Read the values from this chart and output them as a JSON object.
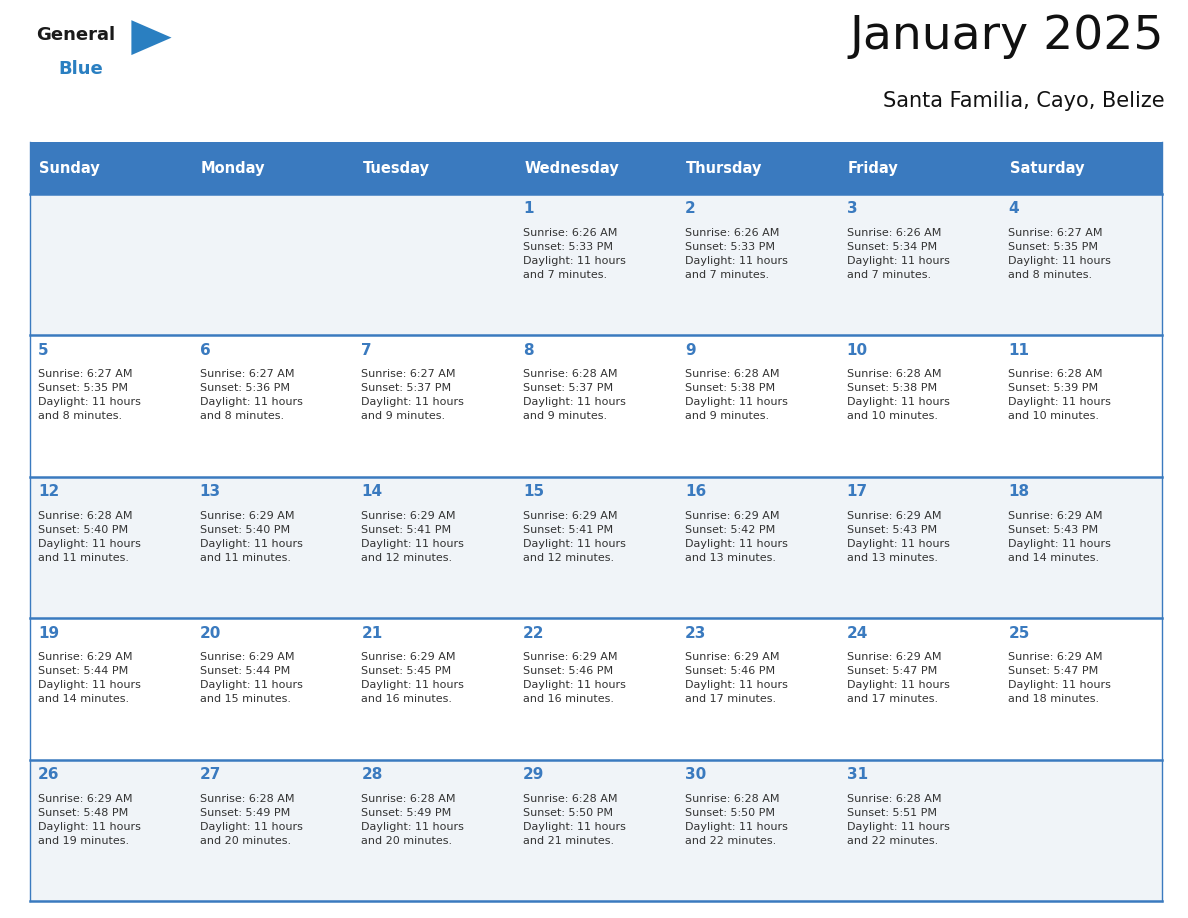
{
  "title": "January 2025",
  "subtitle": "Santa Familia, Cayo, Belize",
  "days_of_week": [
    "Sunday",
    "Monday",
    "Tuesday",
    "Wednesday",
    "Thursday",
    "Friday",
    "Saturday"
  ],
  "header_bg": "#3a7abf",
  "header_text": "#ffffff",
  "row_bg_odd": "#f0f4f8",
  "row_bg_even": "#ffffff",
  "day_num_color": "#3a7abf",
  "text_color": "#333333",
  "line_color": "#3a7abf",
  "logo_general_color": "#1a1a1a",
  "logo_blue_color": "#2a7fc1",
  "calendar_data": [
    [
      {
        "day": null,
        "info": null
      },
      {
        "day": null,
        "info": null
      },
      {
        "day": null,
        "info": null
      },
      {
        "day": 1,
        "info": "Sunrise: 6:26 AM\nSunset: 5:33 PM\nDaylight: 11 hours\nand 7 minutes."
      },
      {
        "day": 2,
        "info": "Sunrise: 6:26 AM\nSunset: 5:33 PM\nDaylight: 11 hours\nand 7 minutes."
      },
      {
        "day": 3,
        "info": "Sunrise: 6:26 AM\nSunset: 5:34 PM\nDaylight: 11 hours\nand 7 minutes."
      },
      {
        "day": 4,
        "info": "Sunrise: 6:27 AM\nSunset: 5:35 PM\nDaylight: 11 hours\nand 8 minutes."
      }
    ],
    [
      {
        "day": 5,
        "info": "Sunrise: 6:27 AM\nSunset: 5:35 PM\nDaylight: 11 hours\nand 8 minutes."
      },
      {
        "day": 6,
        "info": "Sunrise: 6:27 AM\nSunset: 5:36 PM\nDaylight: 11 hours\nand 8 minutes."
      },
      {
        "day": 7,
        "info": "Sunrise: 6:27 AM\nSunset: 5:37 PM\nDaylight: 11 hours\nand 9 minutes."
      },
      {
        "day": 8,
        "info": "Sunrise: 6:28 AM\nSunset: 5:37 PM\nDaylight: 11 hours\nand 9 minutes."
      },
      {
        "day": 9,
        "info": "Sunrise: 6:28 AM\nSunset: 5:38 PM\nDaylight: 11 hours\nand 9 minutes."
      },
      {
        "day": 10,
        "info": "Sunrise: 6:28 AM\nSunset: 5:38 PM\nDaylight: 11 hours\nand 10 minutes."
      },
      {
        "day": 11,
        "info": "Sunrise: 6:28 AM\nSunset: 5:39 PM\nDaylight: 11 hours\nand 10 minutes."
      }
    ],
    [
      {
        "day": 12,
        "info": "Sunrise: 6:28 AM\nSunset: 5:40 PM\nDaylight: 11 hours\nand 11 minutes."
      },
      {
        "day": 13,
        "info": "Sunrise: 6:29 AM\nSunset: 5:40 PM\nDaylight: 11 hours\nand 11 minutes."
      },
      {
        "day": 14,
        "info": "Sunrise: 6:29 AM\nSunset: 5:41 PM\nDaylight: 11 hours\nand 12 minutes."
      },
      {
        "day": 15,
        "info": "Sunrise: 6:29 AM\nSunset: 5:41 PM\nDaylight: 11 hours\nand 12 minutes."
      },
      {
        "day": 16,
        "info": "Sunrise: 6:29 AM\nSunset: 5:42 PM\nDaylight: 11 hours\nand 13 minutes."
      },
      {
        "day": 17,
        "info": "Sunrise: 6:29 AM\nSunset: 5:43 PM\nDaylight: 11 hours\nand 13 minutes."
      },
      {
        "day": 18,
        "info": "Sunrise: 6:29 AM\nSunset: 5:43 PM\nDaylight: 11 hours\nand 14 minutes."
      }
    ],
    [
      {
        "day": 19,
        "info": "Sunrise: 6:29 AM\nSunset: 5:44 PM\nDaylight: 11 hours\nand 14 minutes."
      },
      {
        "day": 20,
        "info": "Sunrise: 6:29 AM\nSunset: 5:44 PM\nDaylight: 11 hours\nand 15 minutes."
      },
      {
        "day": 21,
        "info": "Sunrise: 6:29 AM\nSunset: 5:45 PM\nDaylight: 11 hours\nand 16 minutes."
      },
      {
        "day": 22,
        "info": "Sunrise: 6:29 AM\nSunset: 5:46 PM\nDaylight: 11 hours\nand 16 minutes."
      },
      {
        "day": 23,
        "info": "Sunrise: 6:29 AM\nSunset: 5:46 PM\nDaylight: 11 hours\nand 17 minutes."
      },
      {
        "day": 24,
        "info": "Sunrise: 6:29 AM\nSunset: 5:47 PM\nDaylight: 11 hours\nand 17 minutes."
      },
      {
        "day": 25,
        "info": "Sunrise: 6:29 AM\nSunset: 5:47 PM\nDaylight: 11 hours\nand 18 minutes."
      }
    ],
    [
      {
        "day": 26,
        "info": "Sunrise: 6:29 AM\nSunset: 5:48 PM\nDaylight: 11 hours\nand 19 minutes."
      },
      {
        "day": 27,
        "info": "Sunrise: 6:28 AM\nSunset: 5:49 PM\nDaylight: 11 hours\nand 20 minutes."
      },
      {
        "day": 28,
        "info": "Sunrise: 6:28 AM\nSunset: 5:49 PM\nDaylight: 11 hours\nand 20 minutes."
      },
      {
        "day": 29,
        "info": "Sunrise: 6:28 AM\nSunset: 5:50 PM\nDaylight: 11 hours\nand 21 minutes."
      },
      {
        "day": 30,
        "info": "Sunrise: 6:28 AM\nSunset: 5:50 PM\nDaylight: 11 hours\nand 22 minutes."
      },
      {
        "day": 31,
        "info": "Sunrise: 6:28 AM\nSunset: 5:51 PM\nDaylight: 11 hours\nand 22 minutes."
      },
      {
        "day": null,
        "info": null
      }
    ]
  ]
}
